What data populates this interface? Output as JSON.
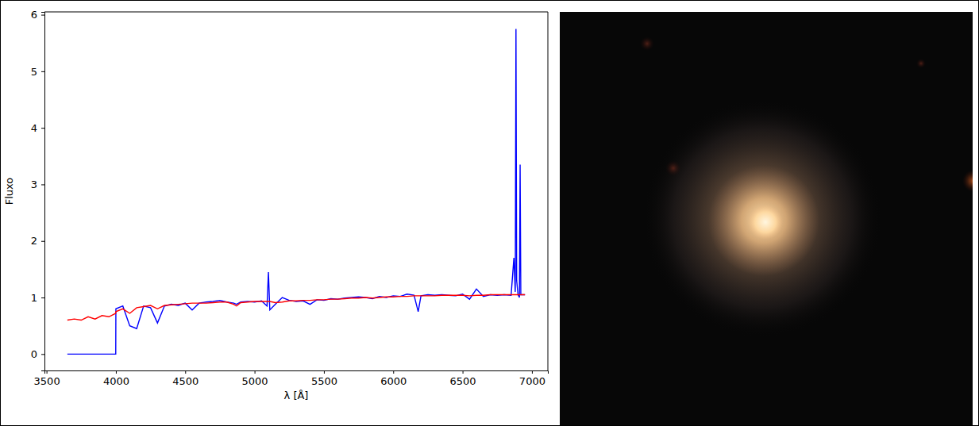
{
  "chart_data": {
    "type": "line",
    "xlabel": "λ [Å]",
    "ylabel": "Fluxo",
    "x": [
      3650,
      3700,
      3750,
      3800,
      3850,
      3900,
      3950,
      3999,
      4000,
      4050,
      4100,
      4150,
      4200,
      4250,
      4300,
      4350,
      4400,
      4450,
      4500,
      4550,
      4600,
      4650,
      4700,
      4750,
      4800,
      4850,
      4870,
      4900,
      4950,
      5000,
      5050,
      5090,
      5100,
      5110,
      5150,
      5200,
      5250,
      5300,
      5350,
      5400,
      5450,
      5500,
      5550,
      5600,
      5650,
      5700,
      5750,
      5800,
      5850,
      5900,
      5950,
      6000,
      6050,
      6100,
      6150,
      6180,
      6200,
      6250,
      6300,
      6350,
      6400,
      6450,
      6500,
      6550,
      6600,
      6650,
      6700,
      6750,
      6800,
      6850,
      6870,
      6880,
      6885,
      6890,
      6900,
      6910,
      6915,
      6920,
      6950
    ],
    "series": [
      {
        "color": "#0000ff",
        "values": [
          0,
          0,
          0,
          0,
          0,
          0,
          0,
          0,
          0.8,
          0.85,
          0.5,
          0.45,
          0.85,
          0.82,
          0.55,
          0.85,
          0.88,
          0.86,
          0.9,
          0.78,
          0.9,
          0.92,
          0.93,
          0.95,
          0.92,
          0.9,
          0.88,
          0.92,
          0.93,
          0.92,
          0.94,
          0.85,
          1.45,
          0.78,
          0.88,
          1.0,
          0.95,
          0.93,
          0.94,
          0.88,
          0.96,
          0.95,
          0.98,
          0.97,
          0.99,
          1.0,
          1.01,
          1.0,
          0.98,
          1.02,
          1.0,
          1.03,
          1.02,
          1.06,
          1.04,
          0.75,
          1.03,
          1.05,
          1.04,
          1.05,
          1.04,
          1.03,
          1.06,
          0.97,
          1.15,
          1.02,
          1.05,
          1.04,
          1.05,
          1.04,
          1.7,
          1.1,
          5.75,
          1.3,
          1.05,
          1.0,
          3.35,
          1.05,
          1.05
        ]
      },
      {
        "color": "#ff0000",
        "values": [
          0.6,
          0.62,
          0.6,
          0.66,
          0.62,
          0.68,
          0.66,
          0.72,
          0.75,
          0.8,
          0.72,
          0.82,
          0.84,
          0.86,
          0.8,
          0.86,
          0.87,
          0.88,
          0.89,
          0.9,
          0.9,
          0.9,
          0.91,
          0.92,
          0.92,
          0.88,
          0.85,
          0.91,
          0.92,
          0.93,
          0.93,
          0.93,
          0.93,
          0.93,
          0.91,
          0.92,
          0.94,
          0.94,
          0.95,
          0.95,
          0.96,
          0.96,
          0.97,
          0.97,
          0.98,
          0.99,
          0.99,
          1.0,
          0.99,
          1.0,
          1.01,
          1.01,
          1.02,
          1.02,
          1.03,
          1.03,
          1.03,
          1.03,
          1.03,
          1.04,
          1.04,
          1.04,
          1.04,
          1.03,
          1.04,
          1.04,
          1.05,
          1.05,
          1.05,
          1.05,
          1.05,
          1.05,
          1.05,
          1.05,
          1.05,
          1.05,
          1.05,
          1.05,
          1.05
        ]
      }
    ],
    "xlim": [
      3485,
      7115
    ],
    "ylim": [
      -0.29,
      6.05
    ],
    "xticks": [
      3500,
      4000,
      4500,
      5000,
      5500,
      6000,
      6500,
      7000
    ],
    "yticks": [
      0,
      1,
      2,
      3,
      4,
      5,
      6
    ],
    "grid": false
  }
}
